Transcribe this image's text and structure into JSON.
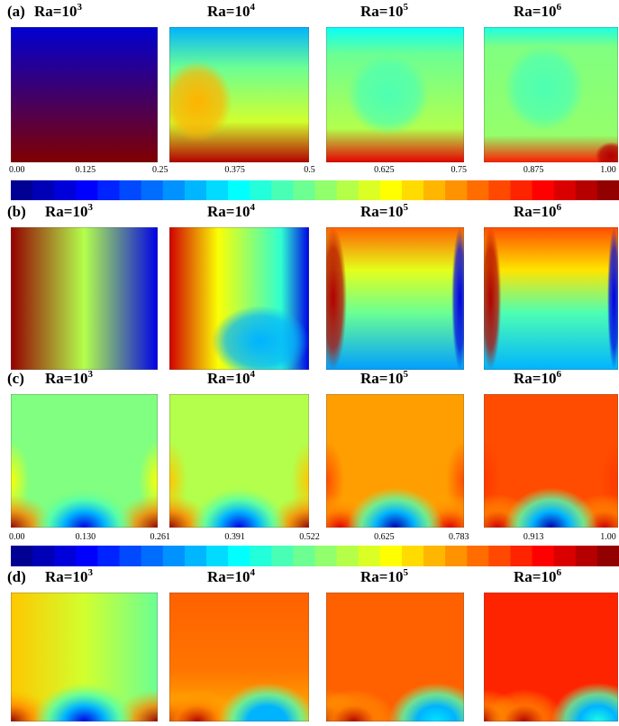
{
  "rows": [
    {
      "label": "(a)",
      "titles": [
        {
          "base": "Ra=10",
          "exp": "3"
        },
        {
          "base": "Ra=10",
          "exp": "4"
        },
        {
          "base": "Ra=10",
          "exp": "5"
        },
        {
          "base": "Ra=10",
          "exp": "6"
        }
      ]
    },
    {
      "label": "(b)",
      "titles": [
        {
          "base": "Ra=10",
          "exp": "3"
        },
        {
          "base": "Ra=10",
          "exp": "4"
        },
        {
          "base": "Ra=10",
          "exp": "5"
        },
        {
          "base": "Ra=10",
          "exp": "6"
        }
      ]
    },
    {
      "label": "(c)",
      "titles": [
        {
          "base": "Ra=10",
          "exp": "3"
        },
        {
          "base": "Ra=10",
          "exp": "4"
        },
        {
          "base": "Ra=10",
          "exp": "5"
        },
        {
          "base": "Ra=10",
          "exp": "6"
        }
      ]
    },
    {
      "label": "(d)",
      "titles": [
        {
          "base": "Ra=10",
          "exp": "3"
        },
        {
          "base": "Ra=10",
          "exp": "4"
        },
        {
          "base": "Ra=10",
          "exp": "5"
        },
        {
          "base": "Ra=10",
          "exp": "6"
        }
      ]
    }
  ],
  "colorbars": [
    {
      "labels": [
        "0.00",
        "0.125",
        "0.25",
        "0.375",
        "0.5",
        "0.625",
        "0.75",
        "0.875",
        "1.00"
      ]
    },
    {
      "labels": [
        "0.00",
        "0.130",
        "0.261",
        "0.391",
        "0.522",
        "0.625",
        "0.783",
        "0.913",
        "1.00"
      ]
    }
  ]
}
